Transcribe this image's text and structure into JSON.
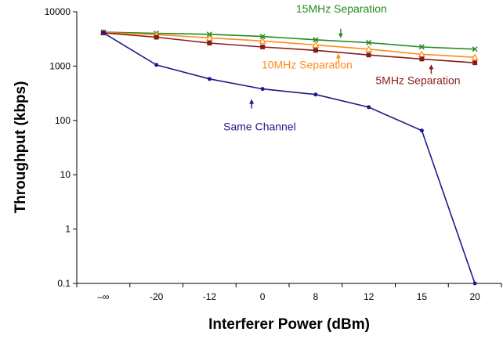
{
  "chart_data": {
    "type": "line",
    "title": "",
    "xlabel": "Interferer Power (dBm)",
    "ylabel": "Throughput (kbps)",
    "categories": [
      "–∞",
      "-20",
      "-12",
      "0",
      "8",
      "12",
      "15",
      "20"
    ],
    "y_scale": "log",
    "ylim": [
      0.1,
      10000
    ],
    "y_ticks": [
      {
        "value": 10000,
        "label": "10000"
      },
      {
        "value": 1000,
        "label": "1000"
      },
      {
        "value": 100,
        "label": "100"
      },
      {
        "value": 10,
        "label": "10"
      },
      {
        "value": 1,
        "label": "1"
      },
      {
        "value": 0.1,
        "label": "0.1"
      }
    ],
    "grid": false,
    "legend": "none (series labelled by on-chart annotations)",
    "series": [
      {
        "name": "15MHz Separation",
        "color": "#1f8c1f",
        "marker": "x",
        "values": [
          4200,
          4000,
          3850,
          3500,
          3050,
          2700,
          2250,
          2050
        ]
      },
      {
        "name": "10MHz Separation",
        "color": "#ff8c1a",
        "marker": "triangle",
        "values": [
          4150,
          3800,
          3300,
          2900,
          2450,
          2050,
          1650,
          1450
        ]
      },
      {
        "name": "5MHz Separation",
        "color": "#8b1a1a",
        "marker": "square",
        "values": [
          4100,
          3400,
          2650,
          2250,
          1950,
          1600,
          1350,
          1150
        ]
      },
      {
        "name": "Same Channel",
        "color": "#1a1a8c",
        "marker": "dot",
        "values": [
          4100,
          1050,
          580,
          380,
          300,
          175,
          65,
          0.1
        ]
      }
    ],
    "annotations": [
      {
        "text": "15MHz Separation",
        "series": "15MHz Separation",
        "point_index": 4
      },
      {
        "text": "10MHz Separation",
        "series": "10MHz Separation",
        "point_index": 4
      },
      {
        "text": "5MHz Separation",
        "series": "5MHz Separation",
        "point_index": 6
      },
      {
        "text": "Same Channel",
        "series": "Same Channel",
        "point_index": 3
      }
    ]
  }
}
